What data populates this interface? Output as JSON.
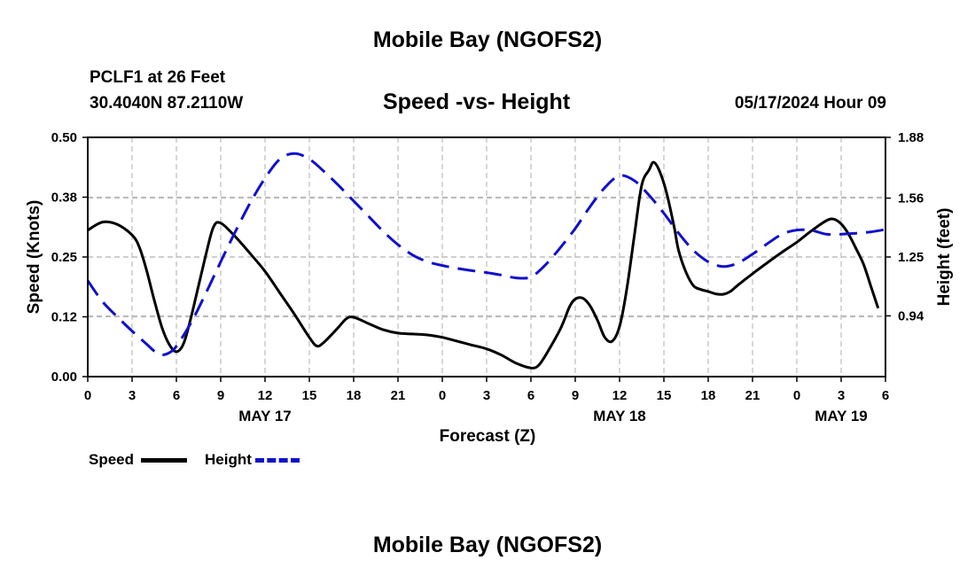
{
  "page": {
    "title_top": "Mobile Bay (NGOFS2)",
    "title_bottom": "Mobile Bay (NGOFS2)",
    "station": "PCLF1 at 26 Feet",
    "coords": "30.4040N  87.2110W",
    "datetime": "05/17/2024 Hour 09"
  },
  "chart_data": {
    "type": "line",
    "title": "Speed -vs- Height",
    "xlabel": "Forecast (Z)",
    "ylabel_left": "Speed (Knots)",
    "ylabel_right": "Height (feet)",
    "x_units": "hours from 00Z May 16",
    "xlim": [
      0,
      54
    ],
    "ylim_left": [
      0,
      0.5
    ],
    "ylim_right": [
      0.62,
      1.88
    ],
    "x_ticks": [
      0,
      3,
      6,
      9,
      12,
      15,
      18,
      21,
      24,
      27,
      30,
      33,
      36,
      39,
      42,
      45,
      48,
      51,
      54
    ],
    "x_tick_labels": [
      "0",
      "3",
      "6",
      "9",
      "12",
      "15",
      "18",
      "21",
      "0",
      "3",
      "6",
      "9",
      "12",
      "15",
      "18",
      "21",
      "0",
      "3",
      "6"
    ],
    "y_ticks_left": [
      0,
      0.125,
      0.25,
      0.375,
      0.5
    ],
    "y_tick_labels_left": [
      "0.00",
      "0.12",
      "0.25",
      "0.38",
      "0.50"
    ],
    "y_ticks_right": [
      0.94,
      1.25,
      1.56,
      1.88
    ],
    "y_tick_labels_right": [
      "0.94",
      "1.25",
      "1.56",
      "1.88"
    ],
    "date_labels": [
      {
        "x": 12,
        "label": "MAY 17"
      },
      {
        "x": 36,
        "label": "MAY 18"
      },
      {
        "x": 51,
        "label": "MAY 19"
      }
    ],
    "grid": true,
    "legend": [
      {
        "name": "Speed",
        "color": "#000000",
        "dash": "solid"
      },
      {
        "name": "Height",
        "color": "#1010cc",
        "dash": "dashed"
      }
    ],
    "series": [
      {
        "name": "Speed",
        "axis": "left",
        "color": "#000000",
        "dash": "solid",
        "points": [
          [
            0,
            0.306
          ],
          [
            1,
            0.323
          ],
          [
            2,
            0.318
          ],
          [
            3,
            0.296
          ],
          [
            3.5,
            0.27
          ],
          [
            4,
            0.22
          ],
          [
            4.5,
            0.16
          ],
          [
            5,
            0.105
          ],
          [
            5.5,
            0.068
          ],
          [
            6,
            0.052
          ],
          [
            6.5,
            0.07
          ],
          [
            7,
            0.125
          ],
          [
            7.5,
            0.19
          ],
          [
            8,
            0.255
          ],
          [
            8.5,
            0.312
          ],
          [
            9,
            0.321
          ],
          [
            10,
            0.292
          ],
          [
            11,
            0.257
          ],
          [
            12,
            0.22
          ],
          [
            13,
            0.175
          ],
          [
            14,
            0.13
          ],
          [
            15,
            0.082
          ],
          [
            15.5,
            0.064
          ],
          [
            16,
            0.072
          ],
          [
            17,
            0.104
          ],
          [
            17.5,
            0.121
          ],
          [
            18,
            0.124
          ],
          [
            19,
            0.111
          ],
          [
            20,
            0.098
          ],
          [
            21,
            0.091
          ],
          [
            22,
            0.089
          ],
          [
            23,
            0.087
          ],
          [
            24,
            0.082
          ],
          [
            25,
            0.074
          ],
          [
            26,
            0.066
          ],
          [
            27,
            0.058
          ],
          [
            28,
            0.045
          ],
          [
            29,
            0.028
          ],
          [
            30,
            0.018
          ],
          [
            30.5,
            0.023
          ],
          [
            31,
            0.045
          ],
          [
            32,
            0.1
          ],
          [
            32.6,
            0.145
          ],
          [
            33,
            0.162
          ],
          [
            33.5,
            0.164
          ],
          [
            34,
            0.148
          ],
          [
            34.5,
            0.118
          ],
          [
            35,
            0.082
          ],
          [
            35.5,
            0.074
          ],
          [
            36,
            0.105
          ],
          [
            36.5,
            0.185
          ],
          [
            37,
            0.295
          ],
          [
            37.5,
            0.4
          ],
          [
            38,
            0.432
          ],
          [
            38.3,
            0.448
          ],
          [
            38.7,
            0.43
          ],
          [
            39.2,
            0.382
          ],
          [
            39.7,
            0.312
          ],
          [
            40,
            0.263
          ],
          [
            40.5,
            0.218
          ],
          [
            41,
            0.19
          ],
          [
            41.5,
            0.182
          ],
          [
            42,
            0.178
          ],
          [
            42.5,
            0.173
          ],
          [
            43,
            0.172
          ],
          [
            43.5,
            0.178
          ],
          [
            44,
            0.191
          ],
          [
            45,
            0.215
          ],
          [
            46,
            0.238
          ],
          [
            47,
            0.26
          ],
          [
            48,
            0.281
          ],
          [
            49,
            0.305
          ],
          [
            50,
            0.326
          ],
          [
            50.5,
            0.329
          ],
          [
            51,
            0.319
          ],
          [
            51.5,
            0.298
          ],
          [
            52,
            0.268
          ],
          [
            52.5,
            0.236
          ],
          [
            53,
            0.19
          ],
          [
            53.5,
            0.143
          ]
        ]
      },
      {
        "name": "Height",
        "axis": "right",
        "color": "#1010cc",
        "dash": "dashed",
        "points": [
          [
            0,
            1.125
          ],
          [
            1,
            1.015
          ],
          [
            2,
            0.935
          ],
          [
            3,
            0.86
          ],
          [
            4,
            0.79
          ],
          [
            4.5,
            0.755
          ],
          [
            5,
            0.735
          ],
          [
            5.5,
            0.745
          ],
          [
            6,
            0.78
          ],
          [
            7,
            0.905
          ],
          [
            8,
            1.06
          ],
          [
            9,
            1.225
          ],
          [
            10,
            1.385
          ],
          [
            11,
            1.535
          ],
          [
            12,
            1.665
          ],
          [
            13,
            1.765
          ],
          [
            14,
            1.795
          ],
          [
            15,
            1.765
          ],
          [
            16,
            1.7
          ],
          [
            17,
            1.625
          ],
          [
            18,
            1.545
          ],
          [
            19,
            1.465
          ],
          [
            20,
            1.385
          ],
          [
            21,
            1.315
          ],
          [
            22,
            1.26
          ],
          [
            23,
            1.225
          ],
          [
            24,
            1.205
          ],
          [
            25,
            1.19
          ],
          [
            26,
            1.178
          ],
          [
            27,
            1.168
          ],
          [
            28,
            1.155
          ],
          [
            29,
            1.14
          ],
          [
            30,
            1.145
          ],
          [
            31,
            1.21
          ],
          [
            32,
            1.3
          ],
          [
            33,
            1.4
          ],
          [
            34,
            1.515
          ],
          [
            35,
            1.615
          ],
          [
            36,
            1.678
          ],
          [
            37,
            1.652
          ],
          [
            38,
            1.575
          ],
          [
            39,
            1.48
          ],
          [
            40,
            1.375
          ],
          [
            41,
            1.285
          ],
          [
            42,
            1.225
          ],
          [
            43,
            1.2
          ],
          [
            44,
            1.218
          ],
          [
            45,
            1.265
          ],
          [
            46,
            1.32
          ],
          [
            47,
            1.37
          ],
          [
            48,
            1.392
          ],
          [
            49,
            1.39
          ],
          [
            50,
            1.37
          ],
          [
            51,
            1.37
          ],
          [
            52,
            1.375
          ],
          [
            53,
            1.382
          ],
          [
            54,
            1.395
          ]
        ]
      }
    ]
  }
}
